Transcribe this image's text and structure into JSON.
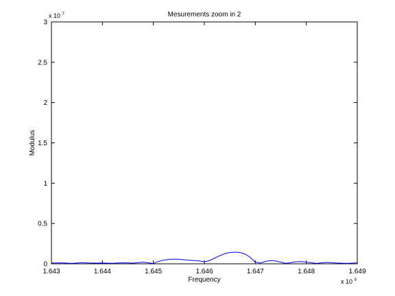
{
  "chart_data": {
    "type": "line",
    "title": "Mesurements zoom in 2",
    "xlabel": "Frequency",
    "ylabel": "Modulus",
    "xlim": [
      1.643,
      1.649
    ],
    "ylim": [
      0,
      3
    ],
    "x_exponent_label": {
      "base": "x 10",
      "power": "9"
    },
    "y_exponent_label": {
      "base": "x 10",
      "power": "7"
    },
    "x_ticks": [
      "1.643",
      "1.644",
      "1.645",
      "1.646",
      "1.647",
      "1.648",
      "1.649"
    ],
    "y_ticks": [
      "0",
      "0.5",
      "1",
      "1.5",
      "2",
      "2.5",
      "3"
    ],
    "grid": false,
    "series": [
      {
        "color": "#0000ff",
        "x": [
          1.643,
          1.6432,
          1.6434,
          1.6436,
          1.6438,
          1.644,
          1.6442,
          1.6444,
          1.6446,
          1.6448,
          1.645,
          1.6451,
          1.6452,
          1.6453,
          1.6454,
          1.6455,
          1.6456,
          1.6457,
          1.6458,
          1.6459,
          1.646,
          1.6461,
          1.6462,
          1.6463,
          1.6464,
          1.6465,
          1.6466,
          1.6467,
          1.6468,
          1.6469,
          1.647,
          1.6471,
          1.6472,
          1.6473,
          1.6474,
          1.6475,
          1.6476,
          1.6477,
          1.6478,
          1.6479,
          1.648,
          1.6482,
          1.6484,
          1.6486,
          1.6488,
          1.649
        ],
        "y": [
          0.01,
          0.012,
          0.005,
          0.014,
          0.008,
          0.01,
          0.006,
          0.013,
          0.009,
          0.02,
          0.004,
          0.03,
          0.045,
          0.055,
          0.058,
          0.056,
          0.05,
          0.045,
          0.04,
          0.035,
          0.025,
          0.04,
          0.07,
          0.1,
          0.125,
          0.14,
          0.145,
          0.14,
          0.12,
          0.08,
          0.02,
          0.01,
          0.03,
          0.04,
          0.035,
          0.02,
          0.005,
          0.015,
          0.025,
          0.028,
          0.02,
          0.005,
          0.018,
          0.01,
          0.005,
          0.012
        ]
      }
    ]
  }
}
